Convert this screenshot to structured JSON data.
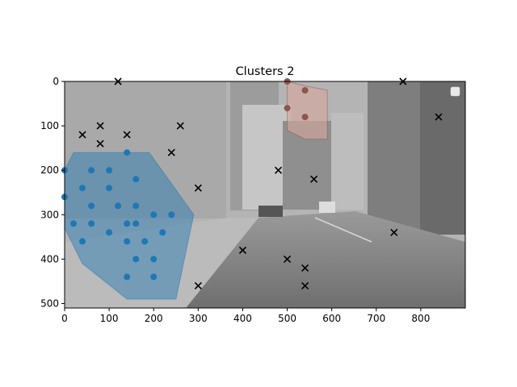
{
  "chart_data": {
    "type": "scatter",
    "title": "Clusters 2",
    "xlabel": "",
    "ylabel": "",
    "xlim": [
      0,
      900
    ],
    "ylim": [
      510,
      0
    ],
    "y_inverted": true,
    "xticks": [
      0,
      100,
      200,
      300,
      400,
      500,
      600,
      700,
      800
    ],
    "yticks": [
      0,
      100,
      200,
      300,
      400,
      500
    ],
    "grid": false,
    "background": "grayscale street photograph",
    "colors": {
      "cluster_blue": "#1f77b4",
      "cluster_brown": "#8c564b",
      "noise": "#000000",
      "hull_blue_fill": "#1f77b4",
      "hull_brown_fill": "#d9a79c"
    },
    "clusters": [
      {
        "color": "#1f77b4",
        "marker": "circle",
        "points": [
          [
            0,
            200
          ],
          [
            0,
            260
          ],
          [
            20,
            320
          ],
          [
            40,
            240
          ],
          [
            40,
            360
          ],
          [
            60,
            200
          ],
          [
            60,
            280
          ],
          [
            60,
            320
          ],
          [
            100,
            200
          ],
          [
            100,
            240
          ],
          [
            100,
            340
          ],
          [
            120,
            280
          ],
          [
            140,
            160
          ],
          [
            140,
            320
          ],
          [
            140,
            360
          ],
          [
            140,
            440
          ],
          [
            160,
            220
          ],
          [
            160,
            280
          ],
          [
            160,
            320
          ],
          [
            160,
            400
          ],
          [
            180,
            360
          ],
          [
            200,
            300
          ],
          [
            200,
            400
          ],
          [
            200,
            440
          ],
          [
            220,
            340
          ],
          [
            240,
            300
          ]
        ],
        "hull": [
          [
            0,
            200
          ],
          [
            20,
            160
          ],
          [
            140,
            160
          ],
          [
            190,
            160
          ],
          [
            290,
            300
          ],
          [
            250,
            490
          ],
          [
            140,
            490
          ],
          [
            40,
            410
          ],
          [
            0,
            330
          ]
        ]
      },
      {
        "color": "#8c564b",
        "marker": "circle",
        "points": [
          [
            500,
            0
          ],
          [
            500,
            60
          ],
          [
            540,
            20
          ],
          [
            540,
            80
          ]
        ],
        "hull": [
          [
            500,
            0
          ],
          [
            540,
            10
          ],
          [
            590,
            20
          ],
          [
            590,
            130
          ],
          [
            540,
            130
          ],
          [
            500,
            110
          ]
        ]
      }
    ],
    "noise": {
      "color": "#000000",
      "marker": "x",
      "points": [
        [
          120,
          0
        ],
        [
          40,
          120
        ],
        [
          80,
          100
        ],
        [
          80,
          140
        ],
        [
          140,
          120
        ],
        [
          240,
          160
        ],
        [
          260,
          100
        ],
        [
          300,
          240
        ],
        [
          300,
          460
        ],
        [
          400,
          380
        ],
        [
          480,
          200
        ],
        [
          500,
          400
        ],
        [
          540,
          420
        ],
        [
          540,
          460
        ],
        [
          560,
          220
        ],
        [
          740,
          340
        ],
        [
          760,
          0
        ],
        [
          840,
          80
        ]
      ]
    }
  }
}
